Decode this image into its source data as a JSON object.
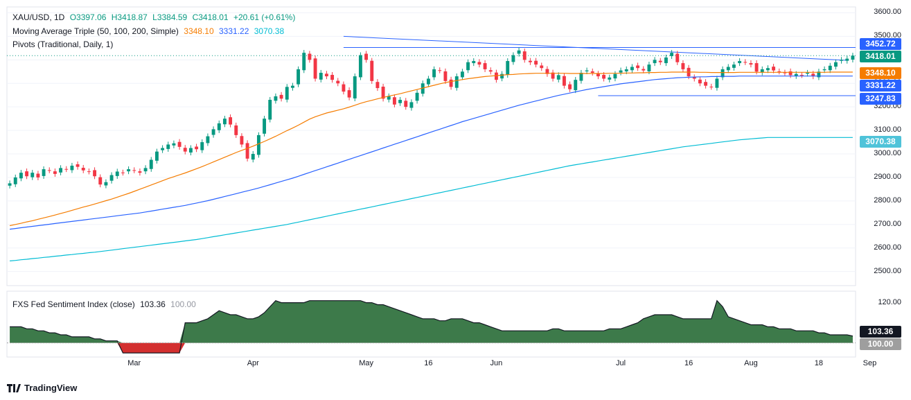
{
  "main_legend": {
    "symbol": "XAU/USD, 1D",
    "open": "O3397.06",
    "high": "H3418.87",
    "low": "L3384.59",
    "close": "C3418.01",
    "change": "+20.61 (+0.61%)",
    "ma_label": "Moving Average Triple (50, 100, 200, Simple)",
    "ma50": "3348.10",
    "ma100": "3331.22",
    "ma200": "3070.38",
    "pivots_label": "Pivots (Traditional, Daily, 1)"
  },
  "sentiment_legend": {
    "label": "FXS Fed Sentiment Index (close)",
    "value": "103.36",
    "baseline": "100.00"
  },
  "price_tags": {
    "pivot_r": "3452.72",
    "last": "3418.01",
    "ma50": "3348.10",
    "ma100": "3331.22",
    "pivot_s": "3247.83",
    "ma200": "3070.38",
    "sentiment": "103.36",
    "sentiment_base": "100.00"
  },
  "colors": {
    "bull": "#089981",
    "bear": "#f23645",
    "ma50": "#f57c00",
    "ma100": "#2962ff",
    "ma200": "#00bcd4",
    "sentiment_fill": "#3d7a4a",
    "sentiment_neg": "#d32f2f",
    "pivot_line": "#2962ff"
  },
  "footer": {
    "brand": "TradingView"
  },
  "chart_data": {
    "type": "candlestick",
    "instrument": "XAU/USD, 1D",
    "y_ticks": [
      2500,
      2600,
      2700,
      2800,
      2900,
      3000,
      3100,
      3200,
      3300,
      3400,
      3500,
      3600
    ],
    "y_tick_labels": [
      "2500.00",
      "2600.00",
      "2700.00",
      "2800.00",
      "2900.00",
      "3000.00",
      "3100.00",
      "3200.00",
      "3300.00",
      "3400.00",
      "3500.00",
      "3600.00"
    ],
    "ylim": [
      2440,
      3625
    ],
    "x_tick_labels": [
      "Mar",
      "Apr",
      "May",
      "16",
      "Jun",
      "Jul",
      "16",
      "Aug",
      "18",
      "Sep"
    ],
    "x_tick_bars": [
      22,
      43,
      63,
      74,
      86,
      108,
      120,
      131,
      143,
      152
    ],
    "bar_count": 150,
    "candles_close": [
      2875,
      2900,
      2920,
      2905,
      2920,
      2900,
      2935,
      2930,
      2915,
      2940,
      2935,
      2950,
      2945,
      2930,
      2925,
      2905,
      2870,
      2880,
      2910,
      2925,
      2920,
      2935,
      2930,
      2920,
      2940,
      2975,
      3010,
      3025,
      3040,
      3045,
      3030,
      3010,
      3025,
      3020,
      3050,
      3075,
      3105,
      3130,
      3150,
      3125,
      3080,
      3040,
      2980,
      3000,
      3080,
      3150,
      3230,
      3245,
      3235,
      3285,
      3290,
      3360,
      3430,
      3400,
      3320,
      3345,
      3330,
      3315,
      3300,
      3265,
      3240,
      3330,
      3420,
      3400,
      3310,
      3280,
      3235,
      3245,
      3210,
      3230,
      3200,
      3220,
      3260,
      3300,
      3320,
      3360,
      3355,
      3310,
      3285,
      3330,
      3350,
      3390,
      3395,
      3380,
      3360,
      3350,
      3315,
      3340,
      3395,
      3420,
      3440,
      3400,
      3390,
      3380,
      3365,
      3340,
      3320,
      3335,
      3290,
      3275,
      3315,
      3345,
      3355,
      3345,
      3330,
      3320,
      3325,
      3340,
      3355,
      3360,
      3370,
      3365,
      3355,
      3380,
      3400,
      3390,
      3410,
      3430,
      3390,
      3360,
      3330,
      3320,
      3300,
      3290,
      3285,
      3320,
      3360,
      3370,
      3380,
      3395,
      3390,
      3380,
      3350,
      3360,
      3365,
      3355,
      3350,
      3345,
      3335,
      3340,
      3335,
      3345,
      3330,
      3350,
      3360,
      3375,
      3390,
      3400,
      3405,
      3418
    ],
    "ma50": [
      2695,
      2700,
      2705,
      2711,
      2716,
      2722,
      2728,
      2734,
      2740,
      2747,
      2753,
      2760,
      2767,
      2774,
      2780,
      2787,
      2794,
      2801,
      2808,
      2816,
      2824,
      2832,
      2841,
      2850,
      2859,
      2868,
      2877,
      2886,
      2895,
      2903,
      2911,
      2919,
      2928,
      2937,
      2946,
      2956,
      2966,
      2976,
      2986,
      2996,
      3006,
      3015,
      3024,
      3033,
      3043,
      3053,
      3064,
      3075,
      3087,
      3099,
      3110,
      3122,
      3135,
      3148,
      3158,
      3166,
      3174,
      3180,
      3186,
      3192,
      3199,
      3207,
      3215,
      3222,
      3228,
      3234,
      3240,
      3246,
      3251,
      3256,
      3262,
      3268,
      3274,
      3280,
      3286,
      3292,
      3298,
      3303,
      3308,
      3312,
      3316,
      3320,
      3323,
      3326,
      3329,
      3331,
      3333,
      3335,
      3337,
      3338,
      3340,
      3341,
      3342,
      3343,
      3343,
      3343,
      3343,
      3343,
      3343,
      3342,
      3342,
      3342,
      3342,
      3342,
      3342,
      3342,
      3343,
      3343,
      3343,
      3344,
      3344,
      3345,
      3345,
      3346,
      3346,
      3347,
      3347,
      3348,
      3348,
      3348,
      3348,
      3348,
      3347,
      3347,
      3346,
      3346,
      3346,
      3346,
      3346,
      3347,
      3347,
      3347,
      3347,
      3347,
      3347,
      3347,
      3347,
      3347,
      3347,
      3347,
      3347,
      3347,
      3347,
      3347,
      3347,
      3348,
      3348,
      3348,
      3348,
      3348
    ],
    "ma100": [
      2680,
      2683,
      2686,
      2689,
      2692,
      2695,
      2698,
      2701,
      2704,
      2707,
      2710,
      2713,
      2716,
      2719,
      2722,
      2725,
      2728,
      2731,
      2734,
      2737,
      2740,
      2743,
      2746,
      2749,
      2753,
      2757,
      2761,
      2765,
      2769,
      2773,
      2777,
      2781,
      2786,
      2791,
      2796,
      2801,
      2807,
      2813,
      2819,
      2825,
      2831,
      2837,
      2843,
      2849,
      2855,
      2862,
      2869,
      2876,
      2883,
      2890,
      2897,
      2905,
      2913,
      2921,
      2929,
      2937,
      2945,
      2953,
      2961,
      2969,
      2977,
      2985,
      2993,
      3001,
      3009,
      3017,
      3025,
      3033,
      3041,
      3049,
      3057,
      3065,
      3073,
      3081,
      3089,
      3097,
      3105,
      3113,
      3121,
      3129,
      3137,
      3144,
      3151,
      3158,
      3165,
      3172,
      3179,
      3186,
      3193,
      3200,
      3207,
      3213,
      3219,
      3225,
      3231,
      3237,
      3243,
      3249,
      3254,
      3259,
      3264,
      3269,
      3274,
      3278,
      3282,
      3286,
      3290,
      3294,
      3298,
      3301,
      3304,
      3307,
      3310,
      3313,
      3316,
      3318,
      3320,
      3322,
      3324,
      3325,
      3326,
      3327,
      3328,
      3328,
      3329,
      3329,
      3330,
      3330,
      3330,
      3331,
      3331,
      3331,
      3331,
      3331,
      3331,
      3331,
      3331,
      3331,
      3331,
      3331,
      3331,
      3331,
      3331,
      3331,
      3331,
      3331,
      3331,
      3331,
      3331,
      3331
    ],
    "ma200": [
      2545,
      2547,
      2550,
      2552,
      2555,
      2557,
      2560,
      2562,
      2565,
      2567,
      2570,
      2572,
      2575,
      2577,
      2580,
      2582,
      2585,
      2588,
      2591,
      2594,
      2597,
      2600,
      2603,
      2606,
      2609,
      2612,
      2615,
      2618,
      2621,
      2624,
      2627,
      2630,
      2633,
      2636,
      2640,
      2644,
      2648,
      2652,
      2656,
      2660,
      2664,
      2668,
      2672,
      2676,
      2680,
      2684,
      2688,
      2692,
      2696,
      2700,
      2705,
      2710,
      2715,
      2720,
      2725,
      2730,
      2735,
      2740,
      2745,
      2750,
      2755,
      2760,
      2765,
      2770,
      2775,
      2780,
      2785,
      2790,
      2795,
      2800,
      2805,
      2810,
      2815,
      2820,
      2825,
      2830,
      2835,
      2840,
      2845,
      2850,
      2855,
      2860,
      2865,
      2870,
      2875,
      2880,
      2885,
      2890,
      2895,
      2900,
      2905,
      2910,
      2915,
      2920,
      2925,
      2930,
      2935,
      2940,
      2945,
      2950,
      2954,
      2958,
      2962,
      2966,
      2970,
      2974,
      2978,
      2982,
      2986,
      2990,
      2994,
      2998,
      3002,
      3006,
      3010,
      3014,
      3018,
      3022,
      3026,
      3030,
      3033,
      3036,
      3039,
      3042,
      3045,
      3048,
      3051,
      3054,
      3057,
      3060,
      3062,
      3064,
      3066,
      3068,
      3070,
      3070,
      3070,
      3070,
      3070,
      3070,
      3070,
      3070,
      3070,
      3070,
      3070,
      3070,
      3070,
      3070,
      3070,
      3070
    ],
    "pivot_resistance": 3452.72,
    "pivot_support": 3247.83,
    "trendline": {
      "from": 3500,
      "to": 3398
    },
    "sentiment": {
      "label": "FXS Fed Sentiment Index (close)",
      "y_tick_labels": [
        "120.00"
      ],
      "baseline": 100.0,
      "ylim": [
        94,
        124
      ],
      "values": [
        108,
        108,
        108,
        107,
        107,
        106,
        106,
        105,
        105,
        104,
        104,
        103,
        103,
        103,
        103,
        102,
        102,
        101,
        101,
        101,
        95,
        95,
        95,
        95,
        95,
        95,
        95,
        95,
        95,
        95,
        95,
        110,
        110,
        110,
        111,
        112,
        114,
        116,
        115,
        114,
        114,
        113,
        112,
        112,
        113,
        115,
        118,
        121,
        120,
        120,
        120,
        120,
        120,
        121,
        121,
        121,
        121,
        121,
        121,
        121,
        121,
        121,
        121,
        120,
        120,
        119,
        119,
        118,
        117,
        116,
        115,
        114,
        113,
        112,
        112,
        112,
        111,
        111,
        112,
        112,
        112,
        111,
        110,
        110,
        109,
        108,
        107,
        106,
        106,
        106,
        106,
        106,
        106,
        106,
        106,
        106,
        107,
        107,
        106,
        106,
        106,
        106,
        106,
        106,
        106,
        106,
        107,
        107,
        107,
        108,
        109,
        110,
        112,
        113,
        114,
        114,
        114,
        114,
        113,
        112,
        112,
        112,
        112,
        112,
        112,
        121,
        118,
        113,
        112,
        111,
        110,
        109,
        109,
        109,
        108,
        108,
        107,
        107,
        107,
        106,
        106,
        106,
        106,
        105,
        105,
        104,
        104,
        104,
        104,
        103.4
      ]
    }
  }
}
